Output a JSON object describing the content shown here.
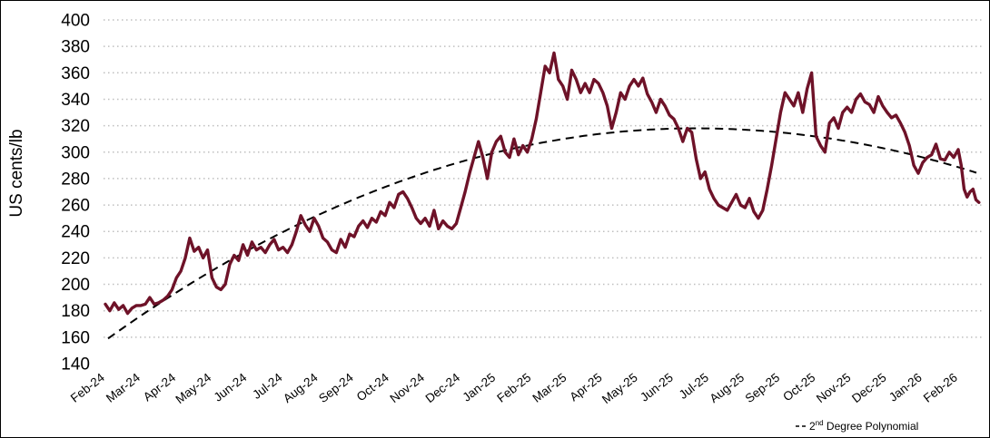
{
  "chart_data": {
    "type": "line",
    "title": "",
    "xlabel": "",
    "ylabel": "US cents/lb",
    "ylim": [
      140,
      400
    ],
    "yticks": [
      "140",
      "160",
      "180",
      "200",
      "220",
      "240",
      "260",
      "280",
      "300",
      "320",
      "340",
      "360",
      "380",
      "400"
    ],
    "xticks": [
      "Feb-24",
      "Mar-24",
      "Apr-24",
      "May-24",
      "Jun-24",
      "Jul-24",
      "Aug-24",
      "Sep-24",
      "Oct-24",
      "Nov-24",
      "Dec-24",
      "Jan-25",
      "Feb-25",
      "Mar-25",
      "Apr-25",
      "May-25",
      "Jun-25",
      "Jul-25",
      "Aug-25",
      "Sep-25",
      "Oct-25",
      "Nov-25",
      "Dec-25",
      "Jan-26",
      "Feb-26"
    ],
    "grid": "horizontal dotted",
    "legend_position": "bottom-right",
    "series": [
      {
        "color": "#6e1228",
        "x": [
          "Feb-24",
          "Mar-24",
          "Apr-24",
          "May-24",
          "Jun-24",
          "Jul-24",
          "Aug-24",
          "Sep-24",
          "Oct-24",
          "Nov-24",
          "Dec-24",
          "Jan-25",
          "Feb-25",
          "Mar-25",
          "Apr-25",
          "May-25",
          "Jun-25",
          "Jul-25",
          "Aug-25",
          "Sep-25",
          "Oct-25",
          "Nov-25",
          "Dec-25",
          "Jan-26",
          "Feb-26"
        ],
        "values": [
          [
            185,
            180,
            186,
            181,
            184,
            178,
            182,
            184
          ],
          [
            184,
            185,
            190,
            185,
            186,
            188,
            191,
            196
          ],
          [
            205,
            210,
            220,
            235,
            225,
            228,
            220,
            226
          ],
          [
            205,
            198,
            196,
            200,
            215,
            222,
            218,
            230
          ],
          [
            222,
            232,
            226,
            228,
            224,
            230,
            234,
            226
          ],
          [
            228,
            224,
            230,
            240,
            252,
            245,
            240,
            250
          ],
          [
            244,
            235,
            232,
            226,
            224,
            234,
            228,
            238
          ],
          [
            236,
            244,
            248,
            243,
            250,
            247,
            255,
            252
          ],
          [
            262,
            258,
            268,
            270,
            265,
            258,
            250,
            246
          ],
          [
            250,
            244,
            256,
            242,
            248,
            244,
            242,
            246
          ],
          [
            258,
            270,
            284,
            296,
            308,
            296,
            280,
            300
          ],
          [
            308,
            312,
            300,
            296,
            310,
            298,
            305,
            300
          ],
          [
            310,
            325,
            345,
            365,
            360,
            375,
            355,
            350
          ],
          [
            340,
            362,
            355,
            345,
            352,
            345,
            355,
            352
          ],
          [
            345,
            335,
            318,
            330,
            345,
            340,
            350,
            355
          ],
          [
            350,
            356,
            344,
            338,
            330,
            340,
            335,
            328
          ],
          [
            325,
            318,
            308,
            318,
            315,
            295,
            280,
            285
          ],
          [
            272,
            265,
            260,
            258,
            256,
            262,
            268,
            260
          ],
          [
            258,
            265,
            255,
            250,
            256,
            272,
            290,
            310
          ],
          [
            330,
            345,
            340,
            335,
            345,
            330,
            348,
            360
          ],
          [
            312,
            305,
            300,
            322,
            326,
            318,
            330,
            334
          ],
          [
            330,
            340,
            344,
            338,
            336,
            330,
            342,
            335
          ],
          [
            330,
            326,
            328,
            322,
            315,
            305,
            290,
            284
          ],
          [
            292,
            296,
            298,
            306,
            295,
            294,
            300,
            296
          ],
          [
            302,
            290,
            272,
            266,
            270,
            272,
            264,
            262
          ]
        ]
      }
    ],
    "trendline": {
      "label": "2nd Degree Polynomial",
      "label_superscript": "nd",
      "label_prefix": "2",
      "label_suffix": " Degree Polynomial",
      "style": "dashed",
      "color": "#000000",
      "start": 159,
      "peak": 318,
      "end": 284
    }
  }
}
